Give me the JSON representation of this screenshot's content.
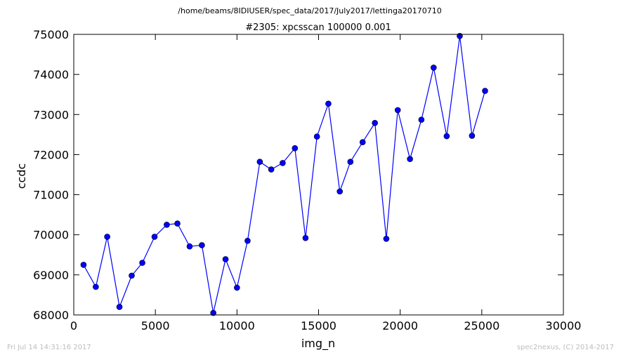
{
  "header": {
    "path": "/home/beams/8IDIUSER/spec_data/2017/July2017/lettinga20170710",
    "title": "#2305: xpcsscan 100000 0.001"
  },
  "footer": {
    "timestamp": "Fri Jul 14 14:31:16 2017",
    "credit": "spec2nexus, (C) 2014-2017"
  },
  "chart_data": {
    "type": "line",
    "title": "#2305: xpcsscan 100000 0.001",
    "xlabel": "img_n",
    "ylabel": "ccdc",
    "xlim": [
      0,
      30000
    ],
    "ylim": [
      68000,
      75000
    ],
    "xticks": [
      0,
      5000,
      10000,
      15000,
      20000,
      25000,
      30000
    ],
    "yticks": [
      68000,
      69000,
      70000,
      71000,
      72000,
      73000,
      74000,
      75000
    ],
    "grid": false,
    "legend": "none",
    "line_color": "#0000ff",
    "marker_color": "#0000ff",
    "series": [
      {
        "x": [
          600,
          1350,
          2050,
          2800,
          3550,
          4200,
          4950,
          5700,
          6350,
          7100,
          7850,
          8550,
          9300,
          10000,
          10650,
          11400,
          12100,
          12800,
          13550,
          14200,
          14900,
          15600,
          16300,
          16950,
          17700,
          18450,
          19150,
          19850,
          20600,
          21300,
          22050,
          22850,
          23650,
          24400,
          25200
        ],
        "y": [
          69250,
          68700,
          69950,
          68200,
          68980,
          69300,
          69950,
          70250,
          70280,
          69710,
          69740,
          68050,
          69390,
          68680,
          69850,
          71820,
          71630,
          71790,
          72160,
          69920,
          72450,
          73270,
          71080,
          71820,
          72310,
          72790,
          69900,
          73110,
          71890,
          72870,
          74170,
          72460,
          74960,
          72470,
          73590
        ]
      }
    ]
  }
}
